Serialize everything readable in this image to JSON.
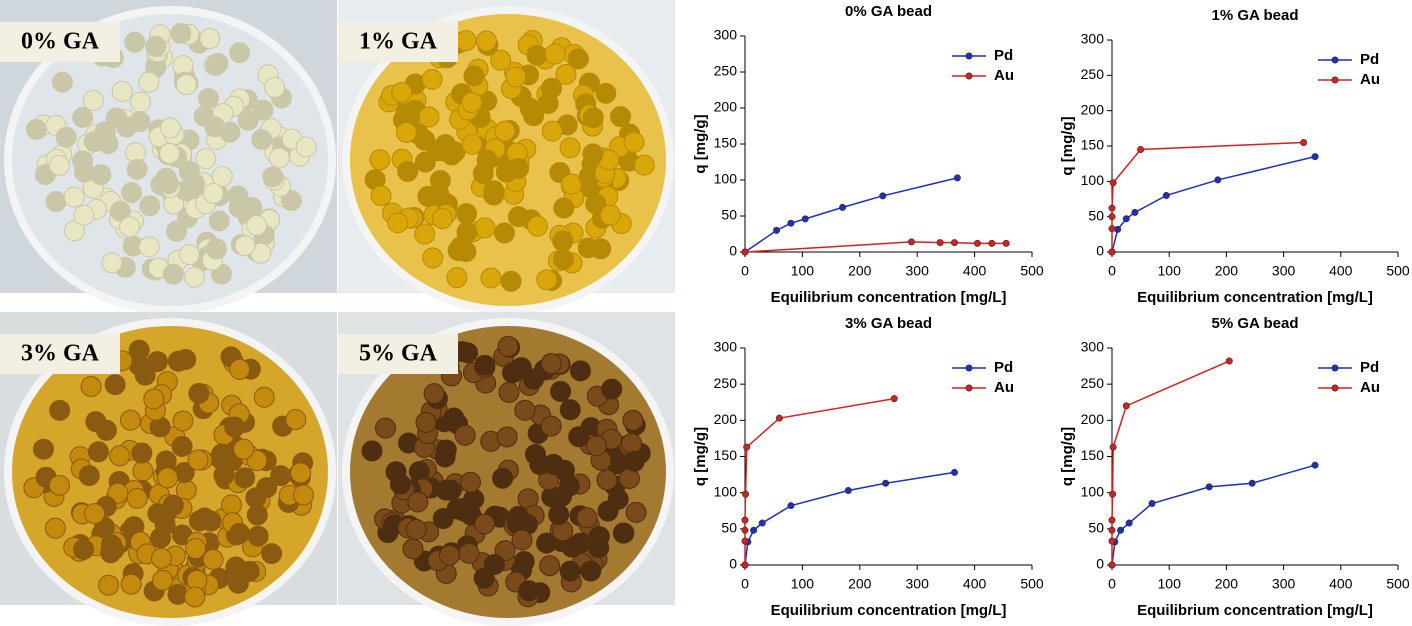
{
  "photos": [
    {
      "label": "0% GA"
    },
    {
      "label": "1% GA"
    },
    {
      "label": "3% GA"
    },
    {
      "label": "5% GA"
    }
  ],
  "chart_data": [
    {
      "type": "line",
      "title": "0% GA bead",
      "x_label": "Equilibrium concentration [mg/L]",
      "y_label": "q [mg/g]",
      "xlim": [
        0,
        500
      ],
      "xticks": [
        0,
        100,
        200,
        300,
        400,
        500
      ],
      "ylim": [
        0,
        300
      ],
      "yticks": [
        0,
        50,
        100,
        150,
        200,
        250,
        300
      ],
      "legend": "upper right",
      "series": [
        {
          "name": "Pd",
          "color": "#1f2fb8",
          "x": [
            0,
            55,
            80,
            105,
            170,
            240,
            370
          ],
          "values": [
            0,
            30,
            40,
            46,
            62,
            78,
            103
          ]
        },
        {
          "name": "Au",
          "color": "#d42020",
          "x": [
            0,
            290,
            340,
            365,
            405,
            430,
            455
          ],
          "values": [
            0,
            14,
            13,
            13,
            12,
            12,
            12
          ]
        }
      ]
    },
    {
      "type": "line",
      "title": "1% GA bead",
      "x_label": "Equilibrium concentration [mg/L]",
      "y_label": "q [mg/g]",
      "xlim": [
        0,
        500
      ],
      "xticks": [
        0,
        100,
        200,
        300,
        400,
        500
      ],
      "ylim": [
        0,
        300
      ],
      "yticks": [
        0,
        50,
        100,
        150,
        200,
        250,
        300
      ],
      "legend": "upper right",
      "series": [
        {
          "name": "Pd",
          "color": "#1f2fb8",
          "x": [
            0,
            10,
            25,
            40,
            95,
            185,
            355
          ],
          "values": [
            0,
            32,
            47,
            56,
            80,
            102,
            135
          ]
        },
        {
          "name": "Au",
          "color": "#d42020",
          "x": [
            0,
            0,
            0,
            0,
            2,
            50,
            335
          ],
          "values": [
            0,
            33,
            50,
            62,
            98,
            145,
            155
          ]
        }
      ]
    },
    {
      "type": "line",
      "title": "3% GA bead",
      "x_label": "Equilibrium concentration [mg/L]",
      "y_label": "q [mg/g]",
      "xlim": [
        0,
        500
      ],
      "xticks": [
        0,
        100,
        200,
        300,
        400,
        500
      ],
      "ylim": [
        0,
        300
      ],
      "yticks": [
        0,
        50,
        100,
        150,
        200,
        250,
        300
      ],
      "legend": "upper right",
      "series": [
        {
          "name": "Pd",
          "color": "#1f2fb8",
          "x": [
            0,
            5,
            15,
            30,
            80,
            180,
            245,
            365
          ],
          "values": [
            0,
            32,
            48,
            58,
            82,
            103,
            113,
            128
          ]
        },
        {
          "name": "Au",
          "color": "#d42020",
          "x": [
            0,
            0,
            0,
            0,
            1,
            3,
            60,
            260
          ],
          "values": [
            0,
            33,
            48,
            62,
            98,
            163,
            203,
            230
          ]
        }
      ]
    },
    {
      "type": "line",
      "title": "5% GA bead",
      "x_label": "Equilibrium concentration [mg/L]",
      "y_label": "q [mg/g]",
      "xlim": [
        0,
        500
      ],
      "xticks": [
        0,
        100,
        200,
        300,
        400,
        500
      ],
      "ylim": [
        0,
        300
      ],
      "yticks": [
        0,
        50,
        100,
        150,
        200,
        250,
        300
      ],
      "legend": "upper right",
      "series": [
        {
          "name": "Pd",
          "color": "#1f2fb8",
          "x": [
            0,
            5,
            15,
            30,
            70,
            170,
            245,
            355
          ],
          "values": [
            0,
            32,
            48,
            58,
            85,
            108,
            113,
            138
          ]
        },
        {
          "name": "Au",
          "color": "#d42020",
          "x": [
            0,
            0,
            0,
            0,
            1,
            2,
            25,
            205
          ],
          "values": [
            0,
            33,
            48,
            62,
            98,
            163,
            220,
            282
          ]
        }
      ]
    }
  ]
}
